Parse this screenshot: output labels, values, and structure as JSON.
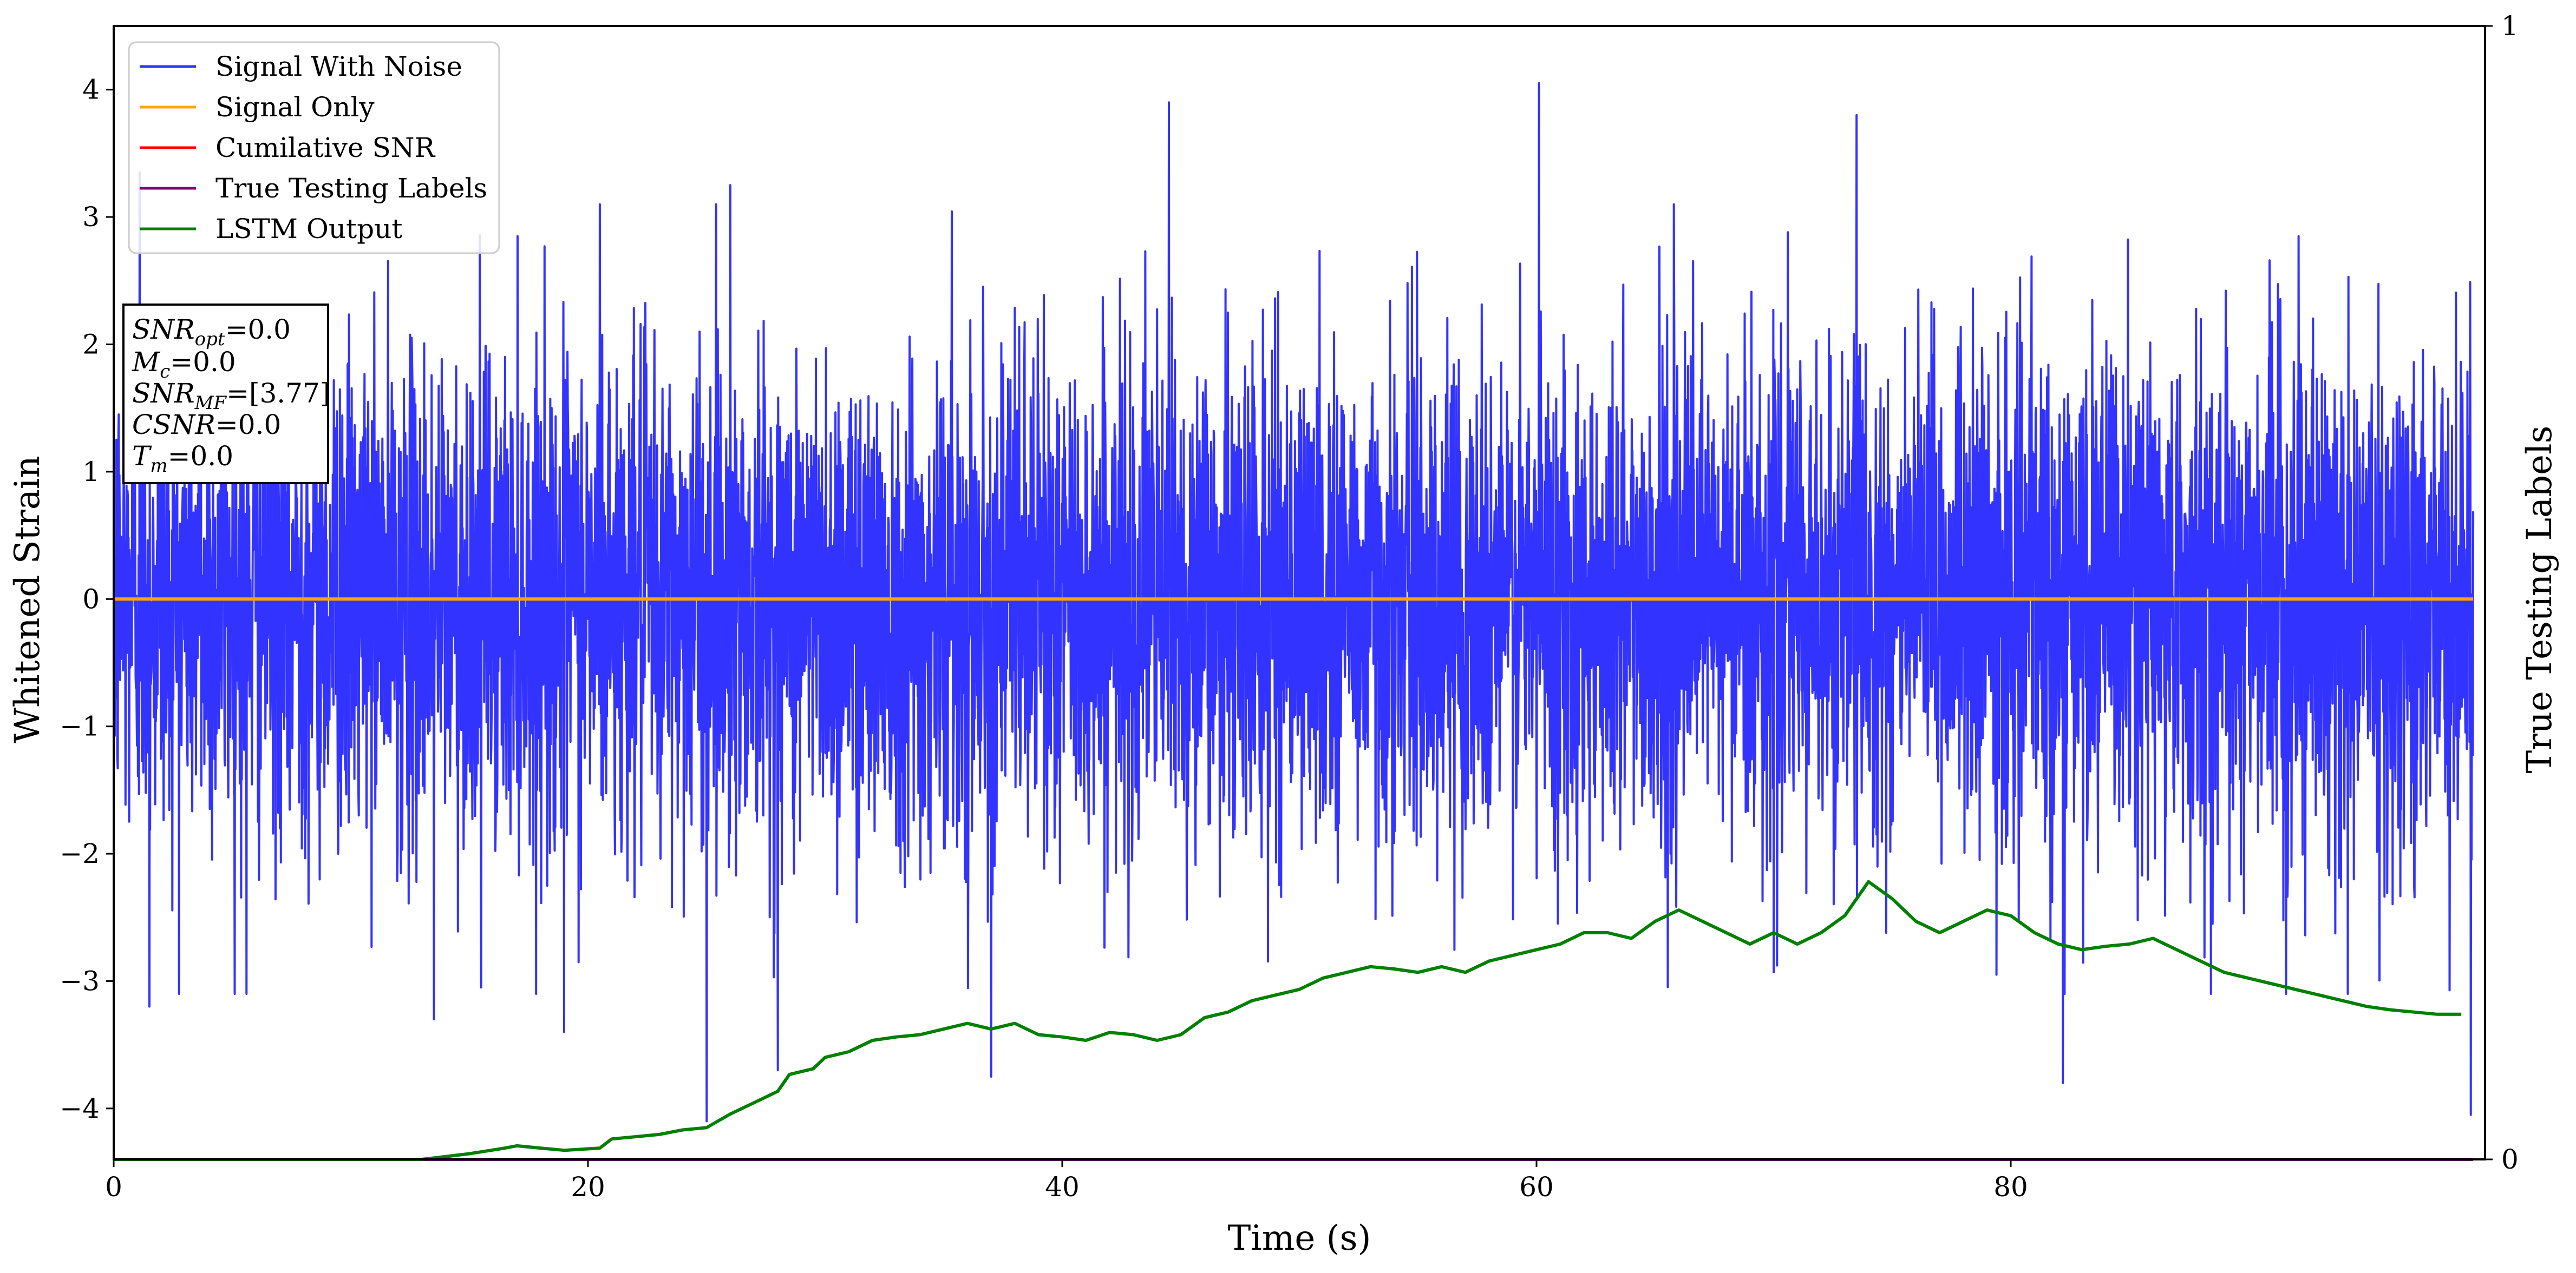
{
  "colors": {
    "noise": "#3333ff",
    "signal": "#ffa500",
    "cumulative_snr": "#ff0000",
    "true_labels": "#800080",
    "lstm": "#008000",
    "axes": "#000000",
    "background": "#ffffff"
  },
  "legend": {
    "placement": "top-left",
    "entries": [
      {
        "label": "Signal With Noise",
        "color": "#3333ff"
      },
      {
        "label": "Signal Only",
        "color": "#ffa500"
      },
      {
        "label": "Cumilative SNR",
        "color": "#ff0000"
      },
      {
        "label": "True Testing Labels",
        "color": "#800080"
      },
      {
        "label": "LSTM Output",
        "color": "#008000"
      }
    ]
  },
  "info_box": {
    "lines": [
      {
        "symbol": "SNR",
        "sub": "opt",
        "value": "=0.0"
      },
      {
        "symbol": "M",
        "sub": "c",
        "value": "=0.0"
      },
      {
        "symbol": "SNR",
        "sub": "MF",
        "value": "=[3.77]"
      },
      {
        "symbol": "CSNR",
        "sub": "",
        "value": "=0.0"
      },
      {
        "symbol": "T",
        "sub": "m",
        "value": "=0.0"
      }
    ]
  },
  "chart_data": {
    "type": "line",
    "xlabel": "Time (s)",
    "ylabel": "Whitened Strain",
    "y2label": "True Testing Labels",
    "xlim": [
      0,
      100
    ],
    "ylim": [
      -4.4,
      4.5
    ],
    "y2lim": [
      0,
      1
    ],
    "xticks": [
      0,
      20,
      40,
      60,
      80
    ],
    "yticks": [
      -4,
      -3,
      -2,
      -1,
      0,
      1,
      2,
      3,
      4
    ],
    "y2ticks": [
      0,
      1
    ],
    "grid": false,
    "series": [
      {
        "name": "Signal With Noise",
        "axis": "left",
        "description": "dense whitened noise, roughly in [-2, 2] with spikes",
        "peaks": [
          {
            "x": 1.1,
            "y": 3.35
          },
          {
            "x": 1.5,
            "y": -3.2
          },
          {
            "x": 5.6,
            "y": -3.1
          },
          {
            "x": 13.5,
            "y": -3.3
          },
          {
            "x": 15.5,
            "y": -3.05
          },
          {
            "x": 19.0,
            "y": -3.4
          },
          {
            "x": 20.5,
            "y": 3.1
          },
          {
            "x": 25.0,
            "y": -4.1
          },
          {
            "x": 26.0,
            "y": 3.25
          },
          {
            "x": 28.0,
            "y": -3.7
          },
          {
            "x": 37.0,
            "y": -3.75
          },
          {
            "x": 44.5,
            "y": 3.9
          },
          {
            "x": 60.1,
            "y": 4.05
          },
          {
            "x": 73.5,
            "y": 3.8
          },
          {
            "x": 82.2,
            "y": -3.8
          },
          {
            "x": 99.4,
            "y": -4.05
          }
        ]
      },
      {
        "name": "Signal Only",
        "axis": "left",
        "x": [
          0,
          99.5
        ],
        "y": [
          0,
          0
        ]
      },
      {
        "name": "Cumilative SNR",
        "axis": "left",
        "x": [],
        "y": []
      },
      {
        "name": "True Testing Labels",
        "axis": "right",
        "x": [
          0,
          99.5
        ],
        "y": [
          0,
          0
        ]
      },
      {
        "name": "LSTM Output",
        "axis": "right",
        "x": [
          0,
          13,
          15,
          16.5,
          17,
          18,
          19,
          20.5,
          21,
          22,
          23,
          24,
          25,
          26,
          27,
          28,
          28.5,
          29.5,
          30,
          31,
          32,
          33,
          34,
          35,
          36,
          37,
          38,
          39,
          40,
          41,
          42,
          43,
          44,
          45,
          46,
          47,
          48,
          49,
          50,
          51,
          52,
          53,
          54,
          55,
          56,
          57,
          58,
          59,
          60,
          61,
          62,
          63,
          64,
          65,
          66,
          67,
          68,
          69,
          70,
          71,
          72,
          73,
          74,
          75,
          76,
          77,
          78,
          79,
          80,
          81,
          82,
          83,
          84,
          85,
          86,
          87,
          88,
          89,
          90,
          91,
          92,
          93,
          94,
          95,
          96,
          97,
          98,
          99
        ],
        "y": [
          0,
          0,
          0.005,
          0.01,
          0.012,
          0.01,
          0.008,
          0.01,
          0.018,
          0.02,
          0.022,
          0.026,
          0.028,
          0.04,
          0.05,
          0.06,
          0.075,
          0.08,
          0.09,
          0.095,
          0.105,
          0.108,
          0.11,
          0.115,
          0.12,
          0.115,
          0.12,
          0.11,
          0.108,
          0.105,
          0.112,
          0.11,
          0.105,
          0.11,
          0.125,
          0.13,
          0.14,
          0.145,
          0.15,
          0.16,
          0.165,
          0.17,
          0.168,
          0.165,
          0.17,
          0.165,
          0.175,
          0.18,
          0.185,
          0.19,
          0.2,
          0.2,
          0.195,
          0.21,
          0.22,
          0.21,
          0.2,
          0.19,
          0.2,
          0.19,
          0.2,
          0.215,
          0.245,
          0.23,
          0.21,
          0.2,
          0.21,
          0.22,
          0.215,
          0.2,
          0.19,
          0.185,
          0.188,
          0.19,
          0.195,
          0.185,
          0.175,
          0.165,
          0.16,
          0.155,
          0.15,
          0.145,
          0.14,
          0.135,
          0.132,
          0.13,
          0.128,
          0.128
        ]
      }
    ]
  }
}
